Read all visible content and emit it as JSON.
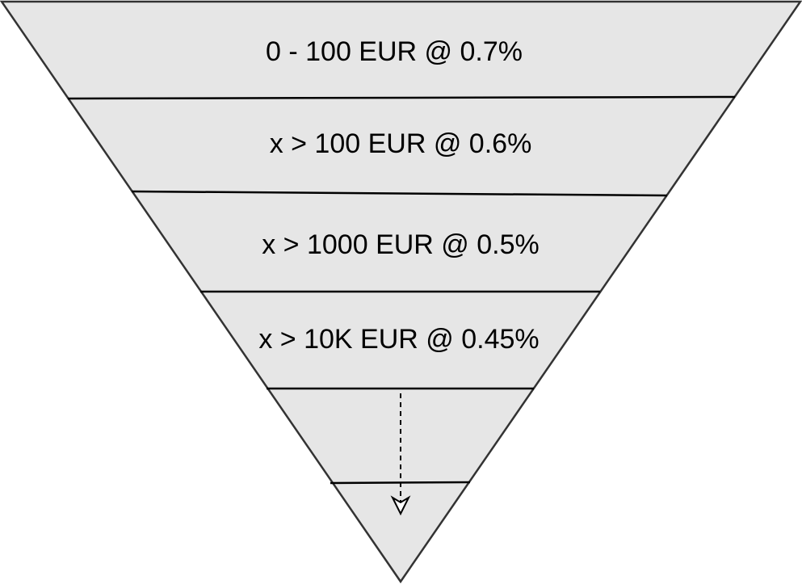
{
  "colors": {
    "fill": "#e6e6e6",
    "stroke": "#333333",
    "divider": "#000000",
    "text": "#000000"
  },
  "funnel": {
    "tiers": [
      {
        "label": "0 - 100 EUR @ 0.7%"
      },
      {
        "label": "x > 100 EUR @ 0.6%"
      },
      {
        "label": "x > 1000 EUR @ 0.5%"
      },
      {
        "label": "x > 10K EUR @ 0.45%"
      },
      {
        "label": ""
      },
      {
        "label": ""
      }
    ],
    "continuation_arrow": {
      "style": "dashed",
      "direction": "down",
      "head": "open"
    }
  }
}
